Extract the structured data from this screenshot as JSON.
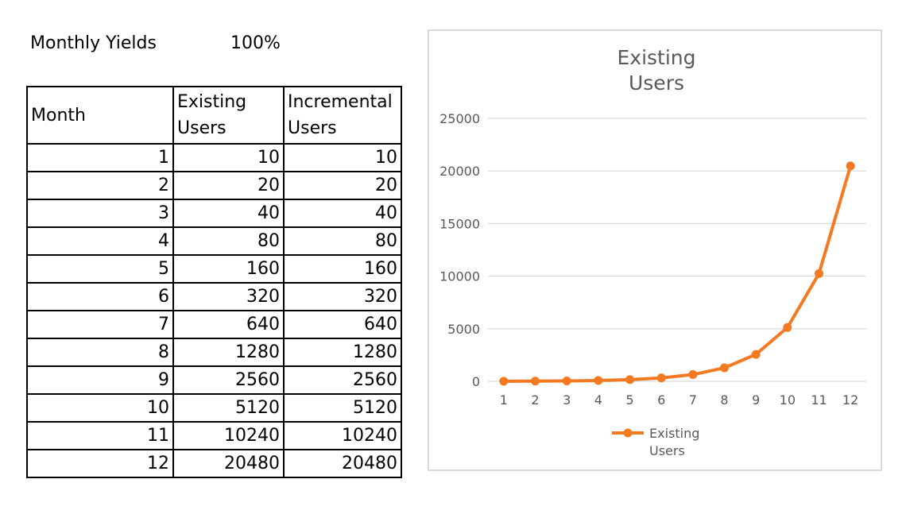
{
  "sheet": {
    "yield_label": "Monthly Yields",
    "yield_value": "100%",
    "columns": [
      "Month",
      "Existing Users",
      "Incremental Users"
    ],
    "rows": [
      [
        "1",
        "10",
        "10"
      ],
      [
        "2",
        "20",
        "20"
      ],
      [
        "3",
        "40",
        "40"
      ],
      [
        "4",
        "80",
        "80"
      ],
      [
        "5",
        "160",
        "160"
      ],
      [
        "6",
        "320",
        "320"
      ],
      [
        "7",
        "640",
        "640"
      ],
      [
        "8",
        "1280",
        "1280"
      ],
      [
        "9",
        "2560",
        "2560"
      ],
      [
        "10",
        "5120",
        "5120"
      ],
      [
        "11",
        "10240",
        "10240"
      ],
      [
        "12",
        "20480",
        "20480"
      ]
    ]
  },
  "chart_data": {
    "type": "line",
    "title": "Existing Users",
    "xlabel": "",
    "ylabel": "",
    "x": [
      1,
      2,
      3,
      4,
      5,
      6,
      7,
      8,
      9,
      10,
      11,
      12
    ],
    "series": [
      {
        "name": "Existing Users",
        "values": [
          10,
          20,
          40,
          80,
          160,
          320,
          640,
          1280,
          2560,
          5120,
          10240,
          20480
        ],
        "color": "#f47920"
      }
    ],
    "ylim": [
      0,
      25000
    ],
    "yticks": [
      0,
      5000,
      10000,
      15000,
      20000,
      25000
    ],
    "grid": true,
    "legend_position": "bottom",
    "markers": true
  }
}
